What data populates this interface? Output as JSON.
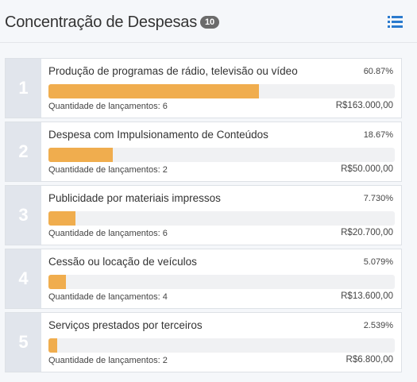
{
  "header": {
    "title": "Concentração de Despesas",
    "badge": "10",
    "list_icon": "list-icon"
  },
  "items": [
    {
      "rank": "1",
      "label": "Produção de programas de rádio, televisão ou vídeo",
      "percent_label": "60.87%",
      "percent": 60.87,
      "count_label": "Quantidade de lançamentos: 6",
      "value": "R$163.000,00"
    },
    {
      "rank": "2",
      "label": "Despesa com Impulsionamento de Conteúdos",
      "percent_label": "18.67%",
      "percent": 18.67,
      "count_label": "Quantidade de lançamentos: 2",
      "value": "R$50.000,00"
    },
    {
      "rank": "3",
      "label": "Publicidade por materiais impressos",
      "percent_label": "7.730%",
      "percent": 7.73,
      "count_label": "Quantidade de lançamentos: 6",
      "value": "R$20.700,00"
    },
    {
      "rank": "4",
      "label": "Cessão ou locação de veículos",
      "percent_label": "5.079%",
      "percent": 5.079,
      "count_label": "Quantidade de lançamentos: 4",
      "value": "R$13.600,00"
    },
    {
      "rank": "5",
      "label": "Serviços prestados por terceiros",
      "percent_label": "2.539%",
      "percent": 2.539,
      "count_label": "Quantidade de lançamentos: 2",
      "value": "R$6.800,00"
    }
  ],
  "colors": {
    "bar_fill": "#f0ad4e",
    "bar_track": "#f0f1f3",
    "rank_bg": "#e1e5ec",
    "icon": "#2b7bce"
  }
}
